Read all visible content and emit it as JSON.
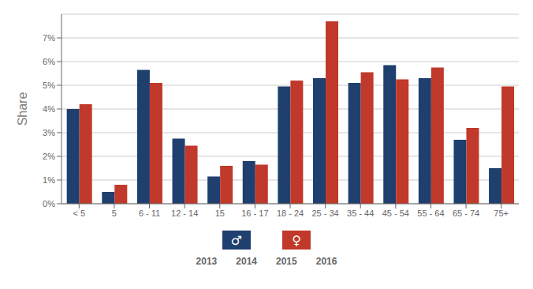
{
  "chart_data": {
    "type": "bar",
    "ylabel": "Share",
    "categories": [
      "< 5",
      "5",
      "6 - 11",
      "12 - 14",
      "15",
      "16 - 17",
      "18 - 24",
      "25 - 34",
      "35 - 44",
      "45 - 54",
      "55 - 64",
      "65 - 74",
      "75+"
    ],
    "series": [
      {
        "name": "♂",
        "color": "#1f3f6e",
        "values": [
          0.04,
          0.005,
          0.0565,
          0.0275,
          0.0115,
          0.018,
          0.0495,
          0.053,
          0.051,
          0.0585,
          0.053,
          0.027,
          0.015
        ]
      },
      {
        "name": "♀",
        "color": "#c0392b",
        "values": [
          0.042,
          0.008,
          0.051,
          0.0245,
          0.016,
          0.0165,
          0.052,
          0.077,
          0.0555,
          0.0525,
          0.0575,
          0.032,
          0.0495
        ]
      }
    ],
    "ylim": [
      0,
      0.08
    ],
    "yticks": [
      {
        "value": 0.0,
        "label": "0%"
      },
      {
        "value": 0.01,
        "label": "1%"
      },
      {
        "value": 0.02,
        "label": "2%"
      },
      {
        "value": 0.03,
        "label": "3%"
      },
      {
        "value": 0.04,
        "label": "4%"
      },
      {
        "value": 0.05,
        "label": "5%"
      },
      {
        "value": 0.06,
        "label": "6%"
      },
      {
        "value": 0.07,
        "label": "7%"
      }
    ],
    "grid": true,
    "legend": "bottom",
    "annotations": [
      "2013",
      "2014",
      "2015",
      "2016"
    ]
  }
}
